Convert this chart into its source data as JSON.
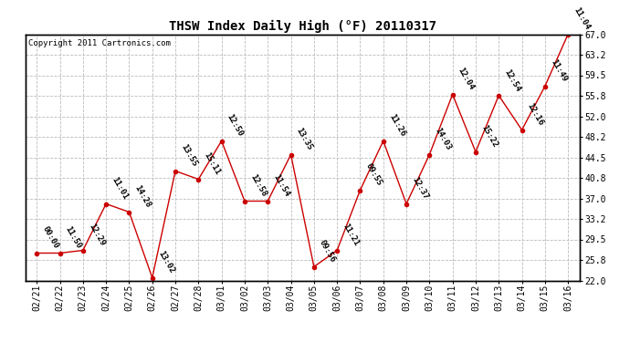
{
  "title": "THSW Index Daily High (°F) 20110317",
  "copyright": "Copyright 2011 Cartronics.com",
  "dates": [
    "02/21",
    "02/22",
    "02/23",
    "02/24",
    "02/25",
    "02/26",
    "02/27",
    "02/28",
    "03/01",
    "03/02",
    "03/03",
    "03/04",
    "03/05",
    "03/06",
    "03/07",
    "03/08",
    "03/09",
    "03/10",
    "03/11",
    "03/12",
    "03/13",
    "03/14",
    "03/15",
    "03/16"
  ],
  "values": [
    27.0,
    27.0,
    27.5,
    36.0,
    34.5,
    22.5,
    42.0,
    40.5,
    47.5,
    36.5,
    36.5,
    45.0,
    24.5,
    27.5,
    38.5,
    47.5,
    36.0,
    45.0,
    56.0,
    45.5,
    55.8,
    49.5,
    57.5,
    67.0
  ],
  "times": [
    "00:00",
    "11:50",
    "12:29",
    "11:01",
    "14:28",
    "13:02",
    "13:55",
    "15:11",
    "12:50",
    "12:58",
    "11:54",
    "13:35",
    "09:56",
    "11:21",
    "09:55",
    "11:26",
    "12:37",
    "14:03",
    "12:04",
    "15:22",
    "12:54",
    "12:16",
    "11:49",
    "11:04"
  ],
  "ylim": [
    22.0,
    67.0
  ],
  "yticks": [
    22.0,
    25.8,
    29.5,
    33.2,
    37.0,
    40.8,
    44.5,
    48.2,
    52.0,
    55.8,
    59.5,
    63.2,
    67.0
  ],
  "line_color": "#cc0000",
  "marker_color": "#cc0000",
  "bg_color": "#ffffff",
  "plot_bg_color": "#ffffff",
  "grid_color": "#bbbbbb",
  "title_fontsize": 10,
  "tick_fontsize": 7,
  "label_fontsize": 6.5,
  "copyright_fontsize": 6.5
}
